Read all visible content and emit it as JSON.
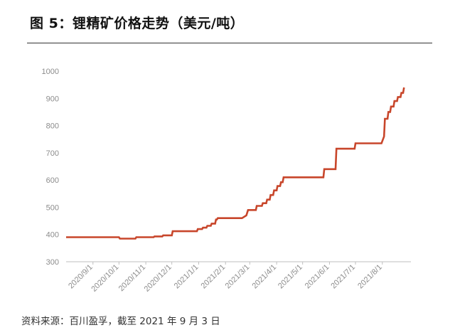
{
  "title": "图 5：锂精矿价格走势（美元/吨）",
  "source": "资料来源：百川盈孚，截至 2021 年 9 月 3 日",
  "chart_data": {
    "type": "line",
    "title": "",
    "xlabel": "",
    "ylabel": "",
    "ylim": [
      300,
      1000
    ],
    "yticks": [
      300,
      400,
      500,
      600,
      700,
      800,
      900,
      1000
    ],
    "xticks": [
      "2020/9/1",
      "2020/10/1",
      "2020/11/1",
      "2020/12/1",
      "2021/1/1",
      "2021/2/1",
      "2021/3/1",
      "2021/4/1",
      "2021/5/1",
      "2021/6/1",
      "2021/7/1",
      "2021/8/1"
    ],
    "grid": false,
    "legend": "none",
    "line_color": "#c8462b",
    "series": [
      {
        "name": "",
        "points": [
          [
            "2020/8/1",
            390
          ],
          [
            "2020/10/1",
            390
          ],
          [
            "2020/10/2",
            385
          ],
          [
            "2020/10/20",
            385
          ],
          [
            "2020/10/21",
            390
          ],
          [
            "2020/11/10",
            390
          ],
          [
            "2020/11/11",
            393
          ],
          [
            "2020/11/20",
            393
          ],
          [
            "2020/11/21",
            397
          ],
          [
            "2020/12/1",
            397
          ],
          [
            "2020/12/2",
            412
          ],
          [
            "2020/12/30",
            412
          ],
          [
            "2020/12/31",
            420
          ],
          [
            "2021/1/5",
            420
          ],
          [
            "2021/1/6",
            425
          ],
          [
            "2021/1/10",
            425
          ],
          [
            "2021/1/11",
            432
          ],
          [
            "2021/1/15",
            432
          ],
          [
            "2021/1/16",
            440
          ],
          [
            "2021/1/20",
            440
          ],
          [
            "2021/1/21",
            455
          ],
          [
            "2021/1/22",
            455
          ],
          [
            "2021/1/23",
            460
          ],
          [
            "2021/2/20",
            460
          ],
          [
            "2021/2/25",
            470
          ],
          [
            "2021/2/27",
            490
          ],
          [
            "2021/3/8",
            490
          ],
          [
            "2021/3/9",
            505
          ],
          [
            "2021/3/15",
            505
          ],
          [
            "2021/3/16",
            515
          ],
          [
            "2021/3/20",
            515
          ],
          [
            "2021/3/21",
            528
          ],
          [
            "2021/3/24",
            528
          ],
          [
            "2021/3/25",
            545
          ],
          [
            "2021/3/28",
            545
          ],
          [
            "2021/3/29",
            562
          ],
          [
            "2021/4/1",
            562
          ],
          [
            "2021/4/2",
            578
          ],
          [
            "2021/4/5",
            578
          ],
          [
            "2021/4/6",
            592
          ],
          [
            "2021/4/8",
            592
          ],
          [
            "2021/4/9",
            610
          ],
          [
            "2021/5/25",
            610
          ],
          [
            "2021/5/26",
            640
          ],
          [
            "2021/6/8",
            640
          ],
          [
            "2021/6/9",
            715
          ],
          [
            "2021/6/30",
            715
          ],
          [
            "2021/7/1",
            735
          ],
          [
            "2021/7/31",
            735
          ],
          [
            "2021/8/3",
            760
          ],
          [
            "2021/8/4",
            825
          ],
          [
            "2021/8/7",
            825
          ],
          [
            "2021/8/8",
            850
          ],
          [
            "2021/8/10",
            850
          ],
          [
            "2021/8/11",
            870
          ],
          [
            "2021/8/14",
            870
          ],
          [
            "2021/8/15",
            890
          ],
          [
            "2021/8/18",
            890
          ],
          [
            "2021/8/19",
            905
          ],
          [
            "2021/8/22",
            905
          ],
          [
            "2021/8/23",
            920
          ],
          [
            "2021/8/25",
            920
          ],
          [
            "2021/8/26",
            940
          ]
        ]
      }
    ]
  }
}
